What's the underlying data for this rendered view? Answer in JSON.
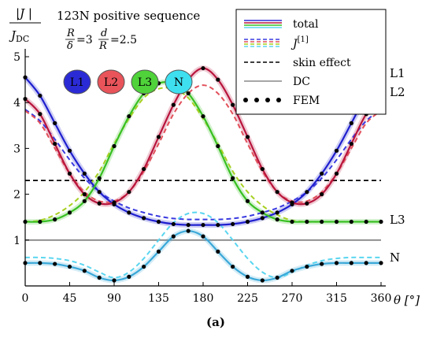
{
  "chart_data": {
    "type": "line",
    "title": "123N positive sequence",
    "param_r_delta": "=3",
    "param_d_r": "=2.5",
    "ylabel": "|J| / J_DC",
    "xlabel": "θ [°]",
    "caption": "(a)",
    "xlim": [
      0,
      360
    ],
    "ylim": [
      0,
      5
    ],
    "x_ticks": [
      0,
      45,
      90,
      135,
      180,
      225,
      270,
      315,
      360
    ],
    "y_ticks": [
      1,
      2,
      3,
      4,
      5
    ],
    "conductor_badges": [
      {
        "label": "L1",
        "color": "#2b2bd6"
      },
      {
        "label": "L2",
        "color": "#e8545a"
      },
      {
        "label": "L3",
        "color": "#4fd23a"
      },
      {
        "label": "N",
        "color": "#3ee0f0"
      }
    ],
    "curve_end_labels": [
      "L1",
      "L2",
      "L3",
      "N"
    ],
    "legend": {
      "entries": [
        "total",
        "J[1]",
        "skin effect",
        "DC",
        "FEM"
      ],
      "placement": "top-right"
    },
    "reference_lines": [
      {
        "name": "skin effect",
        "y": 2.3,
        "style": "dashed",
        "color": "#000000"
      },
      {
        "name": "DC",
        "y": 1.0,
        "style": "solid",
        "color": "#888888"
      }
    ],
    "x": [
      0,
      15,
      30,
      45,
      60,
      75,
      90,
      105,
      120,
      135,
      150,
      165,
      180,
      195,
      210,
      225,
      240,
      255,
      270,
      285,
      300,
      315,
      330,
      345,
      360
    ],
    "series": [
      {
        "name": "L1",
        "kind": "total",
        "color": "#1f1fcf",
        "values": [
          4.55,
          4.15,
          3.55,
          2.95,
          2.45,
          2.05,
          1.78,
          1.6,
          1.48,
          1.4,
          1.35,
          1.33,
          1.33,
          1.33,
          1.35,
          1.4,
          1.48,
          1.6,
          1.78,
          2.05,
          2.45,
          2.95,
          3.55,
          4.15,
          4.55
        ]
      },
      {
        "name": "L1",
        "kind": "J[1]",
        "color": "#3a3ae0",
        "values": [
          3.85,
          3.6,
          3.2,
          2.75,
          2.35,
          2.05,
          1.85,
          1.7,
          1.6,
          1.52,
          1.47,
          1.45,
          1.45,
          1.45,
          1.47,
          1.52,
          1.6,
          1.7,
          1.85,
          2.05,
          2.35,
          2.75,
          3.2,
          3.6,
          3.85
        ]
      },
      {
        "name": "L2",
        "kind": "total",
        "color": "#b8143c",
        "values": [
          4.08,
          3.75,
          3.1,
          2.45,
          2.0,
          1.8,
          1.82,
          2.05,
          2.55,
          3.25,
          3.95,
          4.5,
          4.75,
          4.5,
          3.95,
          3.25,
          2.55,
          2.05,
          1.82,
          1.8,
          2.0,
          2.45,
          3.1,
          3.75,
          4.08
        ]
      },
      {
        "name": "L2",
        "kind": "J[1]",
        "color": "#e2505a",
        "values": [
          3.82,
          3.55,
          3.0,
          2.45,
          2.05,
          1.85,
          1.85,
          2.05,
          2.5,
          3.1,
          3.75,
          4.2,
          4.38,
          4.2,
          3.75,
          3.1,
          2.5,
          2.05,
          1.85,
          1.85,
          2.05,
          2.45,
          3.0,
          3.55,
          3.82
        ]
      },
      {
        "name": "L3",
        "kind": "total",
        "color": "#38c022",
        "values": [
          1.4,
          1.4,
          1.45,
          1.6,
          1.85,
          2.35,
          3.05,
          3.7,
          4.2,
          4.42,
          4.42,
          4.2,
          3.7,
          3.05,
          2.35,
          1.85,
          1.6,
          1.45,
          1.4,
          1.4,
          1.4,
          1.4,
          1.4,
          1.4,
          1.4
        ]
      },
      {
        "name": "L3",
        "kind": "J[1]",
        "color": "#a8d020",
        "values": [
          1.4,
          1.43,
          1.55,
          1.75,
          2.05,
          2.5,
          3.1,
          3.65,
          4.1,
          4.3,
          4.3,
          4.1,
          3.65,
          3.1,
          2.5,
          2.05,
          1.75,
          1.55,
          1.43,
          1.4,
          1.4,
          1.4,
          1.4,
          1.4,
          1.4
        ]
      },
      {
        "name": "N",
        "kind": "total",
        "color": "#3aa8d8",
        "values": [
          0.5,
          0.5,
          0.48,
          0.42,
          0.33,
          0.18,
          0.12,
          0.2,
          0.42,
          0.75,
          1.08,
          1.2,
          1.08,
          0.75,
          0.42,
          0.2,
          0.12,
          0.18,
          0.33,
          0.42,
          0.48,
          0.5,
          0.5,
          0.5,
          0.5
        ]
      },
      {
        "name": "N",
        "kind": "J[1]",
        "color": "#5ad6f0",
        "values": [
          0.62,
          0.62,
          0.6,
          0.55,
          0.45,
          0.3,
          0.18,
          0.3,
          0.6,
          1.0,
          1.38,
          1.58,
          1.58,
          1.38,
          1.0,
          0.6,
          0.3,
          0.18,
          0.3,
          0.45,
          0.55,
          0.6,
          0.62,
          0.62,
          0.62
        ]
      },
      {
        "name": "L1",
        "kind": "FEM",
        "color": "#000000",
        "points": [
          [
            0,
            4.55
          ],
          [
            15,
            4.15
          ],
          [
            30,
            3.55
          ],
          [
            45,
            2.95
          ],
          [
            60,
            2.45
          ],
          [
            75,
            2.05
          ],
          [
            90,
            1.78
          ],
          [
            105,
            1.6
          ],
          [
            120,
            1.48
          ],
          [
            135,
            1.4
          ],
          [
            150,
            1.35
          ],
          [
            165,
            1.33
          ],
          [
            180,
            1.33
          ],
          [
            195,
            1.33
          ],
          [
            210,
            1.35
          ],
          [
            225,
            1.4
          ],
          [
            240,
            1.48
          ],
          [
            255,
            1.6
          ],
          [
            270,
            1.78
          ],
          [
            285,
            2.05
          ],
          [
            300,
            2.45
          ],
          [
            315,
            2.95
          ],
          [
            330,
            3.55
          ],
          [
            345,
            4.15
          ],
          [
            360,
            4.55
          ]
        ]
      },
      {
        "name": "L2",
        "kind": "FEM",
        "color": "#000000",
        "points": [
          [
            0,
            4.08
          ],
          [
            15,
            3.75
          ],
          [
            30,
            3.1
          ],
          [
            45,
            2.45
          ],
          [
            60,
            2.0
          ],
          [
            75,
            1.8
          ],
          [
            90,
            1.82
          ],
          [
            105,
            2.05
          ],
          [
            120,
            2.55
          ],
          [
            135,
            3.25
          ],
          [
            150,
            3.95
          ],
          [
            165,
            4.5
          ],
          [
            180,
            4.75
          ],
          [
            195,
            4.5
          ],
          [
            210,
            3.95
          ],
          [
            225,
            3.25
          ],
          [
            240,
            2.55
          ],
          [
            255,
            2.05
          ],
          [
            270,
            1.82
          ],
          [
            285,
            1.8
          ],
          [
            300,
            2.0
          ],
          [
            315,
            2.45
          ],
          [
            330,
            3.1
          ],
          [
            345,
            3.75
          ],
          [
            360,
            4.08
          ]
        ]
      },
      {
        "name": "L3",
        "kind": "FEM",
        "color": "#000000",
        "points": [
          [
            0,
            1.4
          ],
          [
            15,
            1.4
          ],
          [
            30,
            1.45
          ],
          [
            45,
            1.6
          ],
          [
            60,
            1.85
          ],
          [
            75,
            2.35
          ],
          [
            90,
            3.05
          ],
          [
            105,
            3.7
          ],
          [
            120,
            4.2
          ],
          [
            135,
            4.42
          ],
          [
            150,
            4.42
          ],
          [
            165,
            4.2
          ],
          [
            180,
            3.7
          ],
          [
            195,
            3.05
          ],
          [
            210,
            2.35
          ],
          [
            225,
            1.85
          ],
          [
            240,
            1.6
          ],
          [
            255,
            1.45
          ],
          [
            270,
            1.4
          ],
          [
            285,
            1.4
          ],
          [
            300,
            1.4
          ],
          [
            315,
            1.4
          ],
          [
            330,
            1.4
          ],
          [
            345,
            1.4
          ],
          [
            360,
            1.4
          ]
        ]
      },
      {
        "name": "N",
        "kind": "FEM",
        "color": "#000000",
        "points": [
          [
            0,
            0.5
          ],
          [
            15,
            0.5
          ],
          [
            30,
            0.48
          ],
          [
            45,
            0.42
          ],
          [
            60,
            0.33
          ],
          [
            75,
            0.18
          ],
          [
            90,
            0.12
          ],
          [
            105,
            0.2
          ],
          [
            120,
            0.42
          ],
          [
            135,
            0.75
          ],
          [
            150,
            1.08
          ],
          [
            165,
            1.2
          ],
          [
            180,
            1.08
          ],
          [
            195,
            0.75
          ],
          [
            210,
            0.42
          ],
          [
            225,
            0.2
          ],
          [
            240,
            0.12
          ],
          [
            255,
            0.18
          ],
          [
            270,
            0.33
          ],
          [
            285,
            0.42
          ],
          [
            300,
            0.48
          ],
          [
            315,
            0.5
          ],
          [
            330,
            0.5
          ],
          [
            345,
            0.5
          ],
          [
            360,
            0.5
          ]
        ]
      }
    ]
  }
}
